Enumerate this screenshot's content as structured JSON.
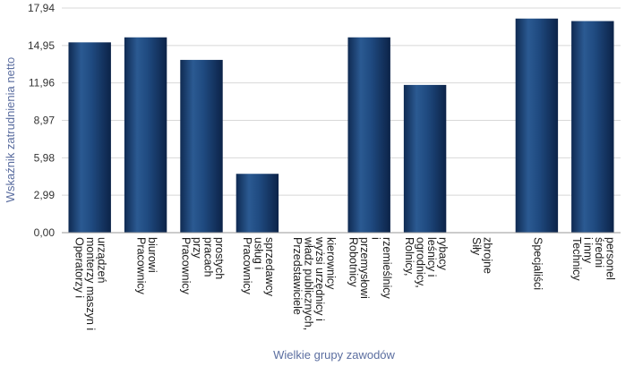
{
  "chart_data": {
    "type": "bar",
    "title": "",
    "xlabel": "Wielkie grupy zawodów",
    "ylabel": "Wskaźnik zatrudnienia netto",
    "ylim": [
      0,
      17.94
    ],
    "yticks": [
      "0,00",
      "2,99",
      "5,98",
      "8,97",
      "11,96",
      "14,95",
      "17,94"
    ],
    "grid": true,
    "categories": [
      "Operatorzy i monterzy maszyn i urządzeń",
      "Pracownicy biurowi",
      "Pracownicy przy pracach prostych",
      "Pracownicy usług i sprzedawcy",
      "Przedstawiciele władz publicznych, wyżsi urzędnicy i kierownicy",
      "Robotnicy przemysłowi i rzemieślnicy",
      "Rolnicy, ogrodnicy, leśnicy i rybacy",
      "Siły zbrojne",
      "Specjaliści",
      "Technicy i inny średni personel"
    ],
    "category_lines": [
      [
        "Operatorzy i",
        "monterzy maszyn i",
        "urządzeń"
      ],
      [
        "Pracownicy",
        "biurowi"
      ],
      [
        "Pracownicy",
        "przy",
        "pracach",
        "prostych"
      ],
      [
        "Pracownicy",
        "usług i",
        "sprzedawcy"
      ],
      [
        "Przedstawiciele",
        "władz publicznych,",
        "wyżsi urzędnicy i",
        "kierownicy"
      ],
      [
        "Robotnicy",
        "przemysłowi",
        "i",
        "rzemieślnicy"
      ],
      [
        "Rolnicy,",
        "ogrodnicy,",
        "leśnicy i",
        "rybacy"
      ],
      [
        "Siły",
        "zbrojne"
      ],
      [
        "Specjaliści"
      ],
      [
        "Technicy",
        "i inny",
        "średni",
        "personel"
      ]
    ],
    "values": [
      15.2,
      15.6,
      13.8,
      4.7,
      0,
      15.6,
      11.8,
      0,
      17.1,
      16.9
    ],
    "bar_color": "#1a3d6d"
  }
}
